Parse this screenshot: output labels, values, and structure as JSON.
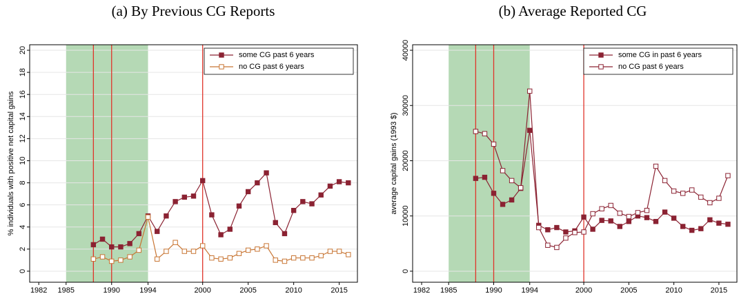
{
  "chart_data": [
    {
      "type": "line",
      "title": "(a) By Previous CG Reports",
      "y_label": "% individuals with positive net capital gains",
      "x": [
        1988,
        1989,
        1990,
        1991,
        1992,
        1993,
        1994,
        1995,
        1996,
        1997,
        1998,
        1999,
        2000,
        2001,
        2002,
        2003,
        2004,
        2005,
        2006,
        2007,
        2008,
        2009,
        2010,
        2011,
        2012,
        2013,
        2014,
        2015,
        2016
      ],
      "series": [
        {
          "name": "some CG past 6 years",
          "color": "#8b2232",
          "marker": "filled",
          "values": [
            2.4,
            2.9,
            2.2,
            2.2,
            2.5,
            3.4,
            5.0,
            3.6,
            5.0,
            6.3,
            6.7,
            6.8,
            8.2,
            5.1,
            3.3,
            3.8,
            5.9,
            7.2,
            8.0,
            8.9,
            4.4,
            3.4,
            5.5,
            6.3,
            6.1,
            6.9,
            7.7,
            8.1,
            8.0
          ]
        },
        {
          "name": "no CG past 6 years",
          "color": "#c87533",
          "marker": "hollow",
          "values": [
            1.1,
            1.3,
            0.9,
            1.0,
            1.3,
            1.9,
            4.9,
            1.1,
            1.8,
            2.6,
            1.8,
            1.8,
            2.3,
            1.2,
            1.1,
            1.2,
            1.6,
            1.9,
            2.0,
            2.3,
            1.0,
            0.9,
            1.2,
            1.2,
            1.2,
            1.4,
            1.8,
            1.8,
            1.5
          ]
        }
      ],
      "xlim": [
        1981,
        2017
      ],
      "xticks": [
        1982,
        1985,
        1990,
        1994,
        2000,
        2005,
        2010,
        2015
      ],
      "ylim": [
        -1,
        20.5
      ],
      "yticks": [
        0,
        2,
        4,
        6,
        8,
        10,
        12,
        14,
        16,
        18,
        20
      ],
      "shade": [
        1985,
        1994
      ],
      "shade_color": "#b5d9b5",
      "vlines": [
        1988,
        1990,
        2000
      ],
      "vline_color": "#e0332a",
      "grid": true,
      "legend": "top-right"
    },
    {
      "type": "line",
      "title": "(b) Average Reported CG",
      "y_label": "average capital gains  (1993 $)",
      "x": [
        1988,
        1989,
        1990,
        1991,
        1992,
        1993,
        1994,
        1995,
        1996,
        1997,
        1998,
        1999,
        2000,
        2001,
        2002,
        2003,
        2004,
        2005,
        2006,
        2007,
        2008,
        2009,
        2010,
        2011,
        2012,
        2013,
        2014,
        2015,
        2016
      ],
      "series": [
        {
          "name": "some CG in past 6 years",
          "color": "#8b2232",
          "marker": "filled",
          "values": [
            16800,
            17000,
            14100,
            12100,
            12900,
            15000,
            25500,
            8300,
            7500,
            7900,
            7100,
            7300,
            9800,
            7600,
            9200,
            9100,
            8100,
            9000,
            10000,
            9700,
            9000,
            10700,
            9600,
            8100,
            7400,
            7700,
            9300,
            8700,
            8500
          ]
        },
        {
          "name": "no CG past 6 years",
          "color": "#8b2232",
          "marker": "hollow",
          "values": [
            25300,
            24900,
            23000,
            18200,
            16400,
            15100,
            32600,
            7900,
            4700,
            4300,
            6000,
            7000,
            7100,
            10400,
            11300,
            11900,
            10500,
            9900,
            10600,
            11000,
            19000,
            16400,
            14500,
            14100,
            14700,
            13400,
            12400,
            13200,
            17300
          ]
        }
      ],
      "xlim": [
        1981,
        2017
      ],
      "xticks": [
        1982,
        1985,
        1990,
        1994,
        2000,
        2005,
        2010,
        2015
      ],
      "ylim": [
        -2000,
        41000
      ],
      "yticks": [
        0,
        10000,
        20000,
        30000,
        40000
      ],
      "shade": [
        1985,
        1994
      ],
      "shade_color": "#b5d9b5",
      "vlines": [
        1988,
        1990,
        2000
      ],
      "vline_color": "#e0332a",
      "grid": true,
      "legend": "top-right"
    }
  ]
}
